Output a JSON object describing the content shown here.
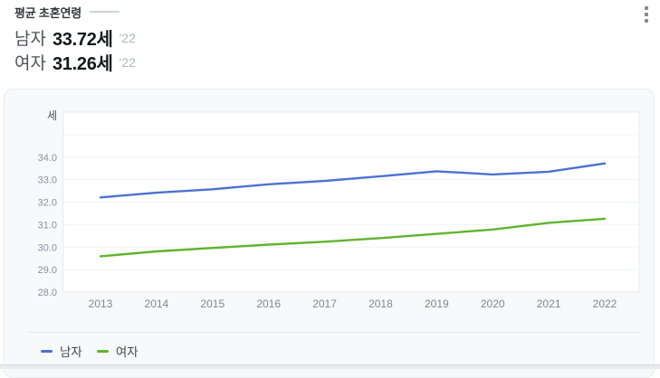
{
  "header": {
    "title": "평균 초혼연령",
    "stats": [
      {
        "label": "남자",
        "value": "33.72세",
        "year": "'22"
      },
      {
        "label": "여자",
        "value": "31.26세",
        "year": "'22"
      }
    ]
  },
  "icons": {
    "menu": "kebab-vertical-menu"
  },
  "chart_data": {
    "type": "line",
    "title": "평균 초혼연령",
    "unit_label": "세",
    "x": [
      2013,
      2014,
      2015,
      2016,
      2017,
      2018,
      2019,
      2020,
      2021,
      2022
    ],
    "xtick_labels": [
      "2013",
      "2014",
      "2015",
      "2016",
      "2017",
      "2018",
      "2019",
      "2020",
      "2021",
      "2022"
    ],
    "series": [
      {
        "name": "남자",
        "color": "#4c72d0",
        "values": [
          32.21,
          32.42,
          32.57,
          32.79,
          32.94,
          33.15,
          33.37,
          33.23,
          33.35,
          33.72
        ]
      },
      {
        "name": "여자",
        "color": "#60b42e",
        "values": [
          29.59,
          29.81,
          29.96,
          30.11,
          30.24,
          30.4,
          30.59,
          30.78,
          31.08,
          31.26
        ]
      }
    ],
    "ylim": [
      28,
      36
    ],
    "gridline_step": 1,
    "ytick_labels": [
      {
        "value": 34,
        "label": "34.0"
      },
      {
        "value": 33,
        "label": "33.0"
      },
      {
        "value": 32,
        "label": "32.0"
      },
      {
        "value": 31,
        "label": "31.0"
      },
      {
        "value": 30,
        "label": "30.0"
      },
      {
        "value": 29,
        "label": "29.0"
      },
      {
        "value": 28,
        "label": "28.0"
      }
    ],
    "grid": "horizontal-only",
    "legend_position": "bottom",
    "legend": [
      "남자",
      "여자"
    ],
    "colors": {
      "male_line": "#4c72d0",
      "female_line": "#60b42e"
    }
  }
}
